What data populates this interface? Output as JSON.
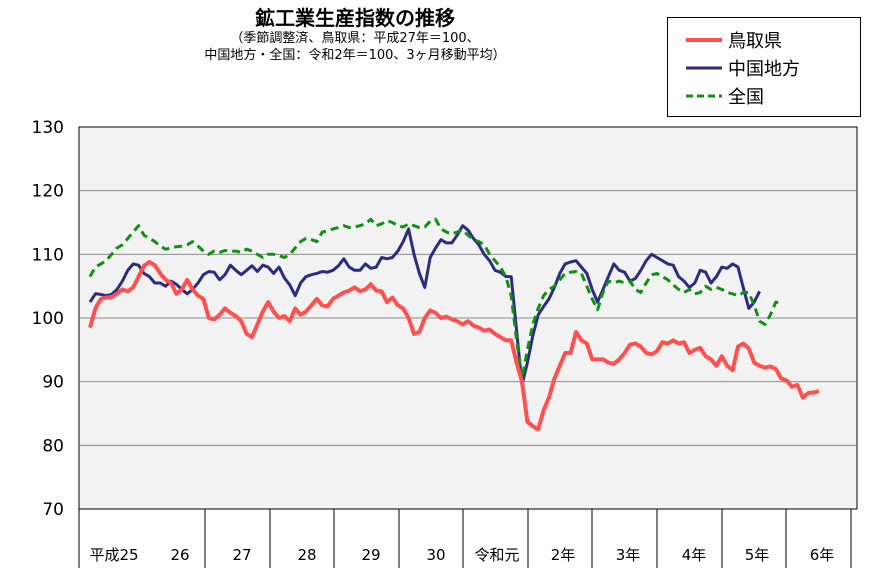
{
  "title": {
    "main": "鉱工業生産指数の推移",
    "sub1": "（季節調整済、鳥取県：平成27年＝100、",
    "sub2": "中国地方・全国：令和2年＝100、3ヶ月移動平均）"
  },
  "legend": {
    "items": [
      {
        "label": "鳥取県",
        "color": "#ff5050",
        "dash": false
      },
      {
        "label": "中国地方",
        "color": "#2b2b80",
        "dash": false
      },
      {
        "label": "全国",
        "color": "#109010",
        "dash": true
      }
    ]
  },
  "chart_data": {
    "type": "line",
    "ylim": [
      70,
      130
    ],
    "yticks": [
      70,
      80,
      90,
      100,
      110,
      120,
      130
    ],
    "year_labels": [
      "平成25",
      "26",
      "27",
      "28",
      "29",
      "30",
      "令和元",
      "2年",
      "3年",
      "4年",
      "5年",
      "6年"
    ],
    "n_months": 136,
    "grid": "horizontal",
    "plot_background": "#f2f2f2",
    "series": [
      {
        "name": "鳥取県",
        "color": "#ff5050",
        "values": [
          98.5,
          101.5,
          103,
          103.2,
          103.3,
          103.8,
          104.5,
          104.2,
          104.8,
          106.5,
          108.2,
          108.8,
          108.3,
          107,
          106,
          105.5,
          103.8,
          104.5,
          106,
          104.5,
          103.5,
          103,
          100,
          99.8,
          100.5,
          101.5,
          100.8,
          100.3,
          99.5,
          97.5,
          97,
          99,
          101,
          102.5,
          101,
          100,
          100.3,
          99.5,
          101.5,
          100.5,
          101,
          102,
          103,
          102,
          101.8,
          103,
          103.5,
          104,
          104.3,
          104.8,
          104.2,
          104.5,
          105.3,
          104.3,
          104.2,
          102.5,
          103.2,
          102,
          101.5,
          100,
          97.5,
          97.8,
          100,
          101.2,
          100.8,
          100,
          100.2,
          99.8,
          99.5,
          99,
          99.5,
          98.8,
          98.5,
          98,
          98.2,
          97.5,
          97,
          96.5,
          96.5,
          93,
          90,
          83.7,
          83,
          82.5,
          85.5,
          87.5,
          90.5,
          92.5,
          94.5,
          94.5,
          97.8,
          96.5,
          96,
          93.5,
          93.5,
          93.5,
          93,
          92.8,
          93.5,
          94.5,
          95.8,
          96,
          95.5,
          94.5,
          94.3,
          94.8,
          96.2,
          96,
          96.5,
          96,
          96.2,
          94.5,
          95,
          95.3,
          94,
          93.5,
          92.5,
          94,
          92.5,
          91.8,
          95.5,
          96,
          95.2,
          93,
          92.5,
          92.2,
          92.4,
          92,
          90.5,
          90.2,
          89.2,
          89.5,
          87.5,
          88.2,
          88.3,
          88.5
        ]
      },
      {
        "name": "中国地方",
        "color": "#2b2b80",
        "values": [
          102.5,
          103.8,
          103.7,
          103.5,
          103.7,
          104.5,
          105.8,
          107.5,
          108.5,
          108.3,
          107,
          106.5,
          105.5,
          105.5,
          105,
          105.8,
          105.3,
          104.5,
          103.8,
          104.5,
          105.5,
          106.8,
          107.3,
          107.2,
          106,
          106.8,
          108.3,
          107.5,
          106.8,
          107.5,
          108.2,
          107.3,
          108.3,
          108,
          107,
          108,
          106.3,
          105.2,
          103.5,
          105.5,
          106.5,
          106.8,
          107,
          107.3,
          107.2,
          107.5,
          108.2,
          109.3,
          108,
          107.5,
          107.5,
          108.5,
          107.8,
          108,
          109.5,
          109.3,
          109.5,
          110.5,
          112,
          114,
          110,
          107,
          104.8,
          109.5,
          111,
          112.3,
          111.8,
          111.8,
          113,
          114.5,
          113.8,
          112.5,
          111.5,
          110,
          109,
          107.5,
          107.2,
          106.5,
          106.5,
          98,
          89.5,
          93,
          97.2,
          100.5,
          101.8,
          103,
          104.8,
          107,
          108.5,
          108.8,
          109,
          108,
          107,
          104.5,
          102.5,
          104.5,
          106.5,
          108.5,
          107.5,
          107.2,
          105.8,
          106.2,
          107.5,
          109,
          110,
          109.5,
          109,
          108.5,
          108.3,
          106.5,
          105.8,
          104.8,
          105.5,
          107.5,
          107.2,
          105.5,
          106.5,
          108,
          107.8,
          108.5,
          108,
          104.7,
          101.5,
          102.5,
          104.2
        ]
      },
      {
        "name": "全国",
        "color": "#109010",
        "values": [
          106.5,
          108,
          108.5,
          109,
          110,
          111,
          111.5,
          112.5,
          113.5,
          114.5,
          113,
          112.5,
          112,
          111.3,
          110.8,
          111,
          111.2,
          111.3,
          111.5,
          112,
          111.3,
          110.5,
          110,
          110.5,
          110.3,
          110.6,
          110.5,
          110.5,
          110.3,
          110.8,
          110.5,
          110,
          109.5,
          110,
          110,
          109.8,
          109.5,
          110,
          111,
          112,
          112.5,
          112.3,
          112,
          113.5,
          113.7,
          114,
          114.2,
          114.5,
          114.2,
          114.3,
          114.5,
          114.8,
          115.5,
          114.5,
          114.8,
          115.3,
          115,
          114.5,
          114.3,
          114.8,
          114.5,
          114.2,
          114.3,
          115.2,
          115.5,
          114,
          113.5,
          113.2,
          113.5,
          113.8,
          113,
          112.3,
          112,
          111.5,
          110,
          109,
          108,
          106.5,
          103.5,
          96.5,
          90.5,
          95,
          99,
          101.5,
          103.5,
          104.5,
          105,
          106,
          107,
          107.2,
          107.3,
          107,
          105,
          103,
          101.3,
          104,
          105.8,
          105.5,
          105.8,
          105.5,
          105.8,
          104.5,
          104,
          105.5,
          106.8,
          107,
          106.5,
          106,
          105.2,
          104.5,
          104,
          104.5,
          103.8,
          104,
          105,
          104.5,
          104.8,
          104.5,
          104,
          103.8,
          103.5,
          104,
          104,
          102,
          99.5,
          99,
          100.5,
          102.5,
          102.3
        ]
      }
    ]
  }
}
